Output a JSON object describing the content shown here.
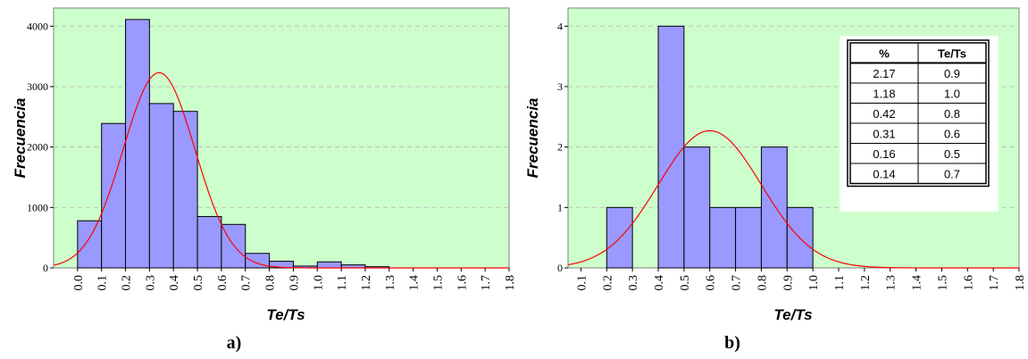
{
  "colors": {
    "plot_background": "#ccffcc",
    "bar_fill": "#9999ff",
    "bar_stroke": "#000000",
    "curve": "#ff0000",
    "grid": "#c0c0c0"
  },
  "chart_data": [
    {
      "type": "bar",
      "panel_label": "a)",
      "xlabel": "Te/Ts",
      "ylabel": "Frecuencia",
      "x_ticks": [
        "0.0",
        "0.1",
        "0.2",
        "0.3",
        "0.4",
        "0.5",
        "0.6",
        "0.7",
        "0.8",
        "0.9",
        "1.0",
        "1.1",
        "1.2",
        "1.3",
        "1.4",
        "1.5",
        "1.6",
        "1.7",
        "1.8"
      ],
      "bin_edges": [
        0.0,
        0.1,
        0.2,
        0.3,
        0.4,
        0.5,
        0.6,
        0.7,
        0.8,
        0.9,
        1.0,
        1.1,
        1.2,
        1.3,
        1.4,
        1.5,
        1.6,
        1.7,
        1.8
      ],
      "values": [
        780,
        2390,
        4110,
        2720,
        2590,
        850,
        720,
        240,
        110,
        30,
        100,
        50,
        20,
        0,
        0,
        0,
        0,
        0
      ],
      "y_ticks": [
        "0",
        "1000",
        "2000",
        "3000",
        "4000"
      ],
      "ylim": [
        0,
        4300
      ],
      "xlim": [
        -0.1,
        1.8
      ],
      "grid": "horizontal dashed",
      "fit_curve": {
        "type": "normal",
        "mean": 0.34,
        "sd": 0.15,
        "peak": 3230
      }
    },
    {
      "type": "bar",
      "panel_label": "b)",
      "xlabel": "Te/Ts",
      "ylabel": "Frecuencia",
      "x_ticks": [
        "0.1",
        "0.2",
        "0.3",
        "0.4",
        "0.5",
        "0.6",
        "0.7",
        "0.8",
        "0.9",
        "1.0",
        "1.1",
        "1.2",
        "1.3",
        "1.4",
        "1.5",
        "1.6",
        "1.7",
        "1.8"
      ],
      "bin_edges": [
        0.2,
        0.3,
        0.4,
        0.5,
        0.6,
        0.7,
        0.8,
        0.9,
        1.0
      ],
      "values": [
        1,
        0,
        4,
        2,
        1,
        1,
        2,
        1
      ],
      "y_ticks": [
        "0",
        "1",
        "2",
        "3",
        "4"
      ],
      "ylim": [
        0,
        4.3
      ],
      "xlim": [
        0.05,
        1.8
      ],
      "grid": "horizontal dashed",
      "fit_curve": {
        "type": "normal",
        "mean": 0.6,
        "sd": 0.2,
        "peak": 2.27
      },
      "table": {
        "headers": [
          "%",
          "Te/Ts"
        ],
        "rows": [
          [
            "2.17",
            "0.9"
          ],
          [
            "1.18",
            "1.0"
          ],
          [
            "0.42",
            "0.8"
          ],
          [
            "0.31",
            "0.6"
          ],
          [
            "0.16",
            "0.5"
          ],
          [
            "0.14",
            "0.7"
          ]
        ]
      }
    }
  ]
}
